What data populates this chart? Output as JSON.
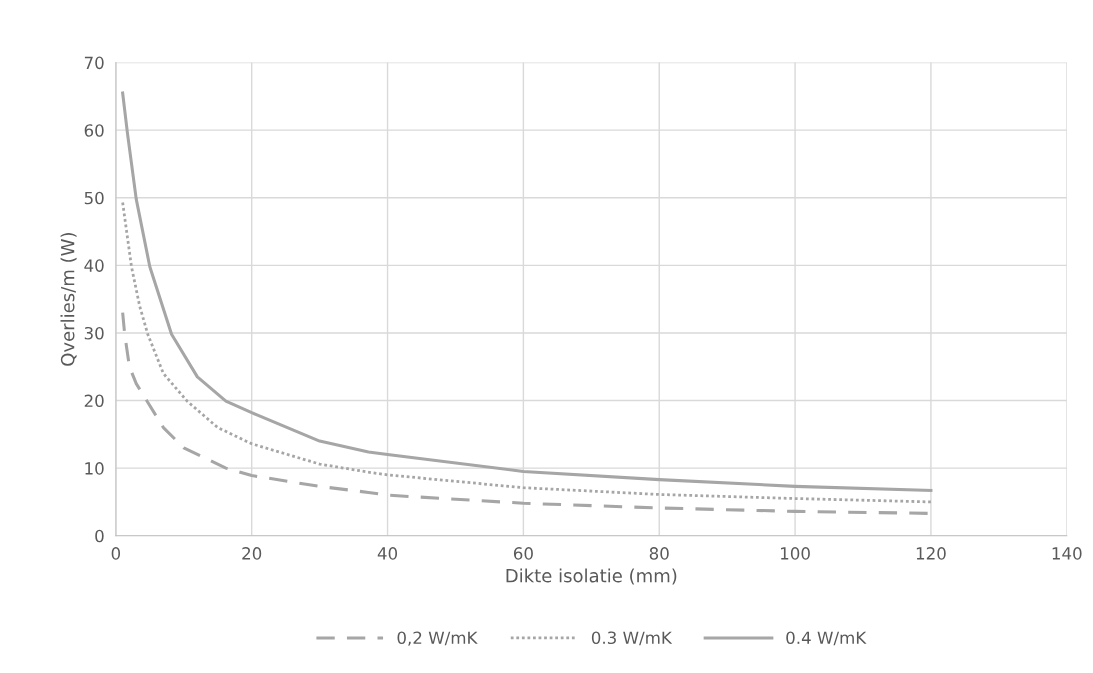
{
  "chart_data": {
    "type": "line",
    "xlabel": "Dikte isolatie (mm)",
    "ylabel": "Qverlies/m (W)",
    "xlim": [
      0,
      140
    ],
    "xticks": [
      0,
      20,
      40,
      60,
      80,
      100,
      120,
      140
    ],
    "ylim": [
      0,
      70
    ],
    "yticks": [
      0,
      10,
      20,
      30,
      40,
      50,
      60,
      70
    ],
    "grid": true,
    "legend": "bottom",
    "series": [
      {
        "name": "0,2 W/mK",
        "color": "#a6a6a6",
        "line_style": "dashed",
        "x": [
          1,
          1.3,
          2,
          3,
          4.6,
          7,
          10,
          16.2,
          20,
          30,
          37.2,
          40,
          60,
          80,
          100,
          120
        ],
        "values": [
          33,
          29.8,
          25,
          22.5,
          19.9,
          16,
          13,
          10,
          8.9,
          7.3,
          6.4,
          6,
          4.8,
          4.1,
          3.6,
          3.3
        ]
      },
      {
        "name": "0.3 W/mK",
        "color": "#a6a6a6",
        "line_style": "dotted",
        "x": [
          1,
          2.3,
          3.5,
          4.7,
          7,
          10.5,
          15,
          20,
          30,
          37.2,
          40,
          60,
          80,
          100,
          120
        ],
        "values": [
          49.3,
          39.8,
          34,
          29.8,
          24,
          19.9,
          16,
          13.6,
          10.6,
          9.4,
          9,
          7.1,
          6.1,
          5.5,
          5
        ]
      },
      {
        "name": "0.4 W/mK",
        "color": "#a6a6a6",
        "line_style": "solid",
        "x": [
          1,
          1.7,
          3,
          5,
          8.2,
          12,
          16.2,
          20,
          30,
          37.2,
          40,
          60,
          80,
          100,
          120
        ],
        "values": [
          65.5,
          59.6,
          49.8,
          39.8,
          29.8,
          23.5,
          19.9,
          18.2,
          14,
          12.4,
          12,
          9.5,
          8.3,
          7.3,
          6.7
        ]
      }
    ]
  }
}
